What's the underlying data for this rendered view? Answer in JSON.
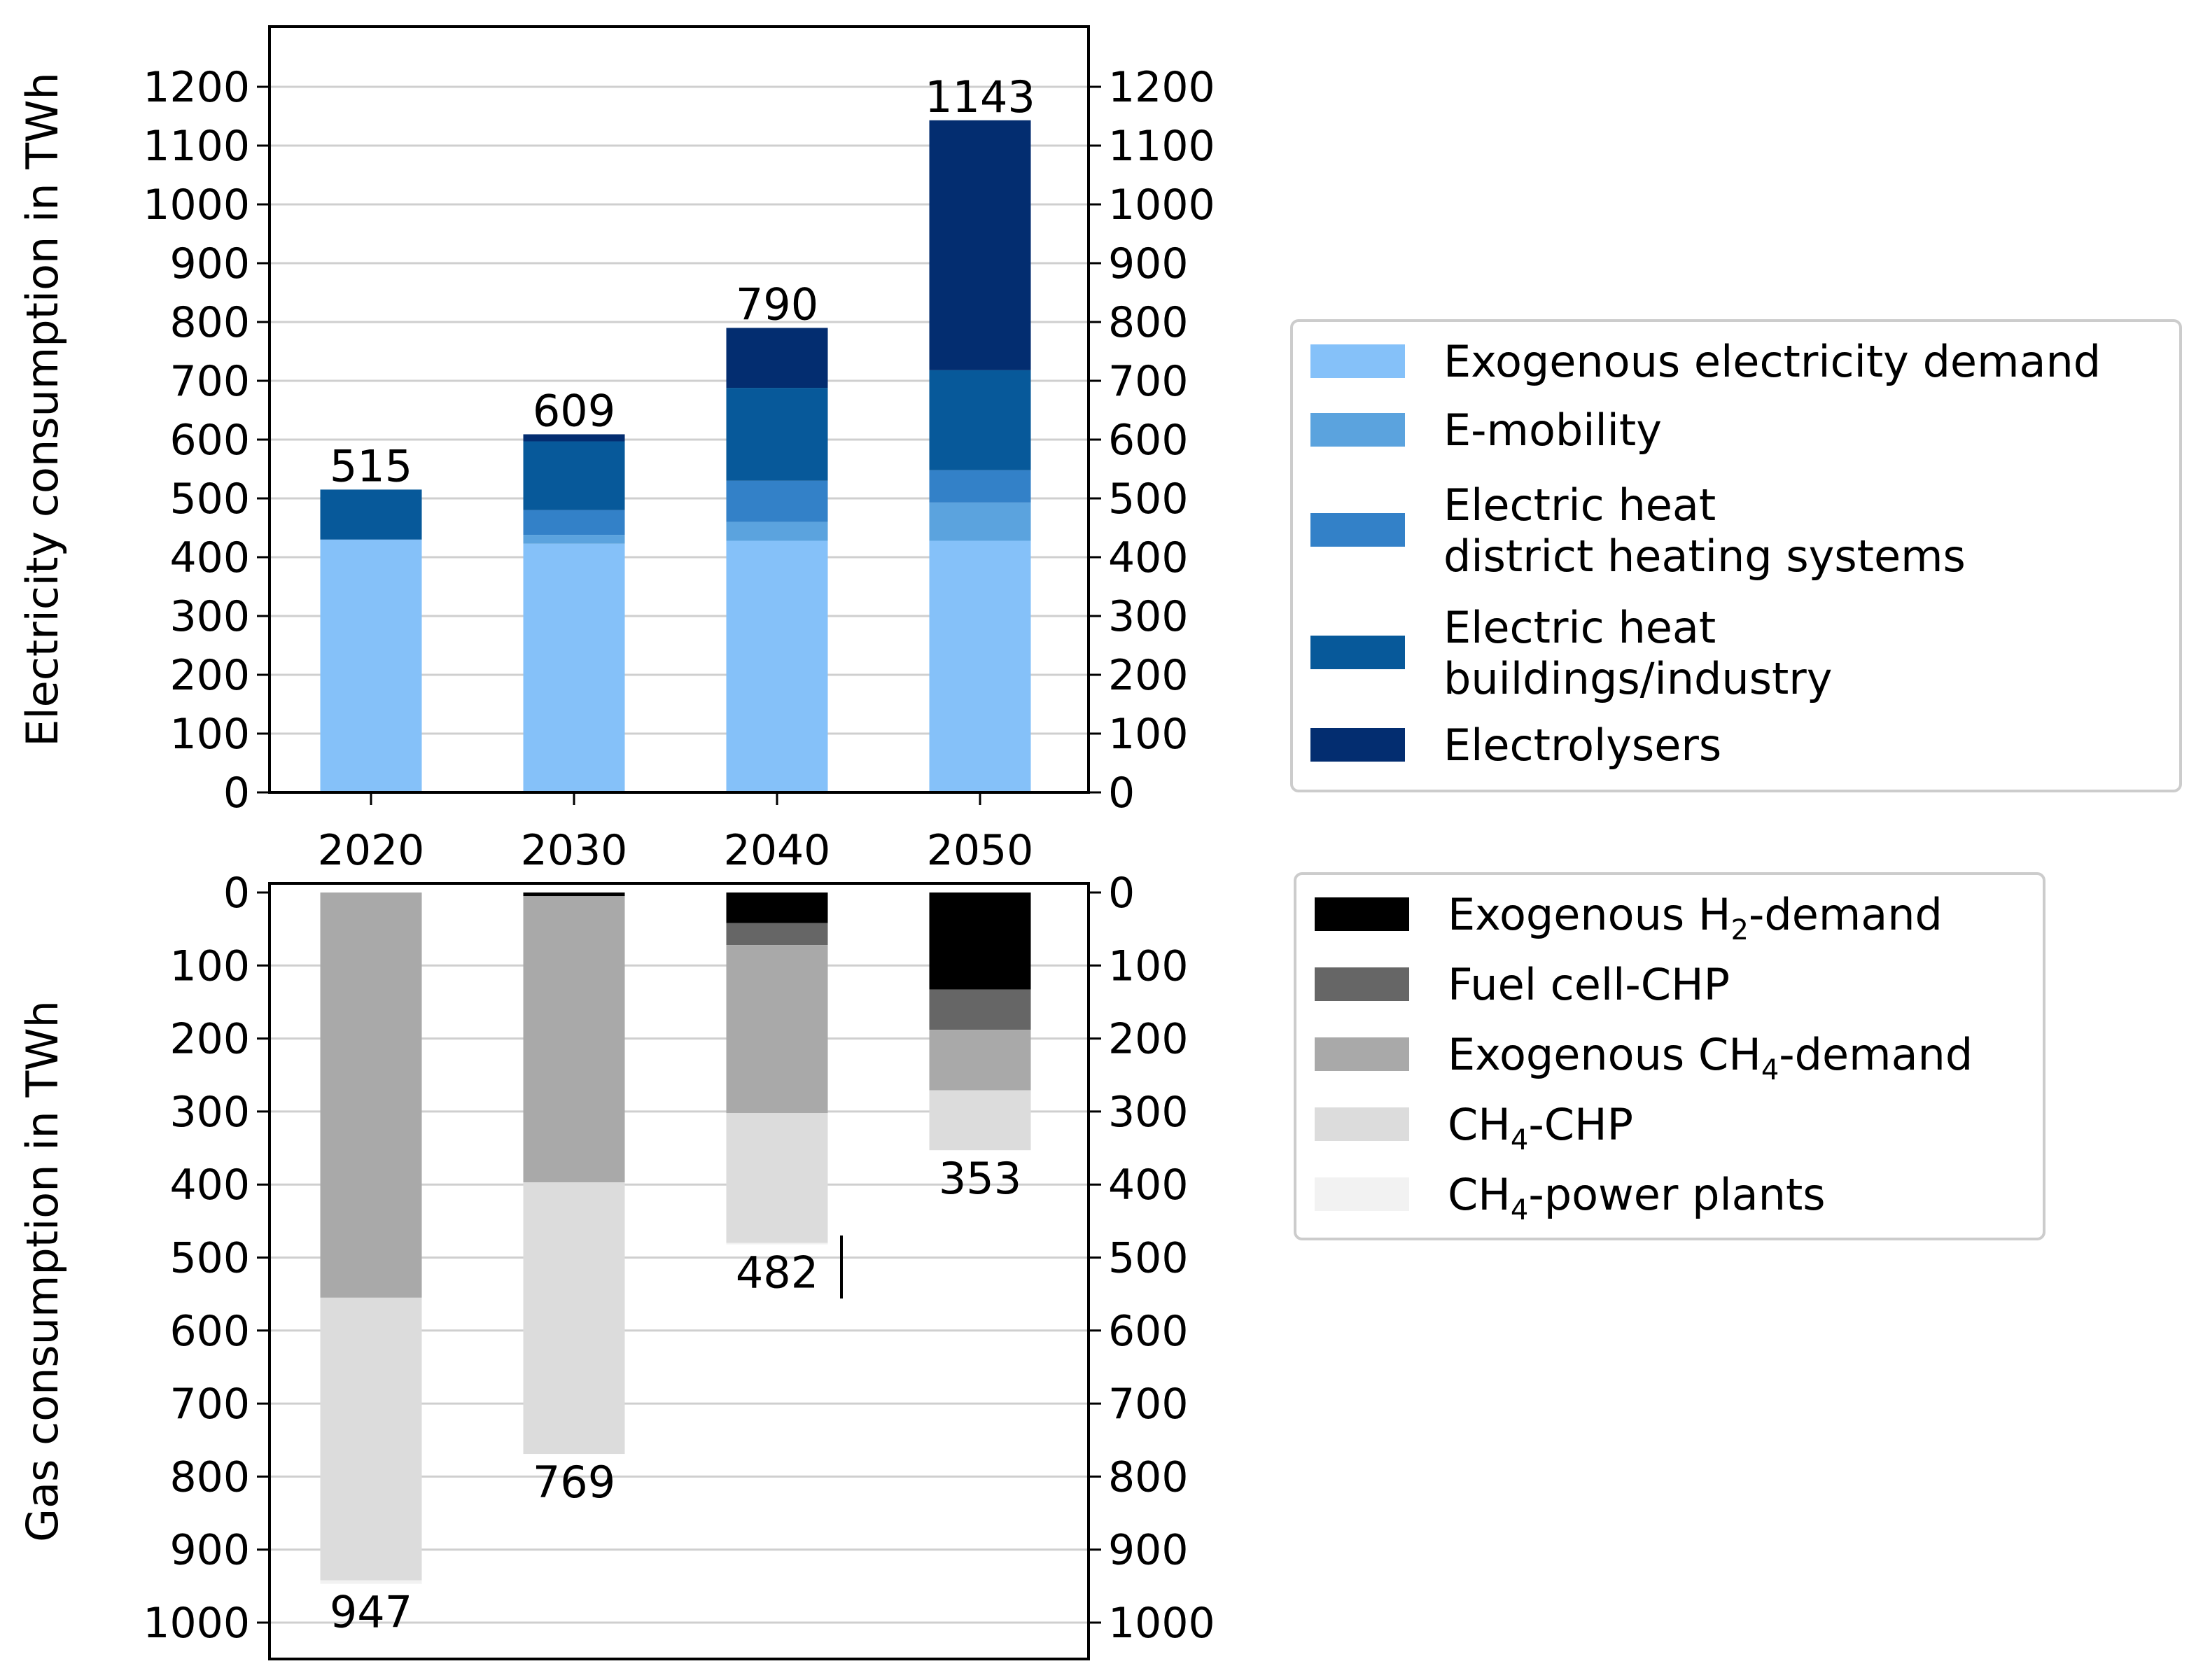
{
  "chart_data": [
    {
      "type": "bar",
      "stacked": true,
      "orientation": "upward",
      "categories": [
        "2020",
        "2030",
        "2040",
        "2050"
      ],
      "ylabel": "Electricity consumption in TWh",
      "ylim": [
        0,
        1300
      ],
      "yticks": [
        0,
        100,
        200,
        300,
        400,
        500,
        600,
        700,
        800,
        900,
        1000,
        1100,
        1200
      ],
      "grid": true,
      "mirror_y_axis": true,
      "legend_position": "right",
      "series": [
        {
          "name": "Exogenous electricity demand",
          "name_lines": [
            "Exogenous electricity demand"
          ],
          "color": "#85C1F9",
          "values": [
            430,
            423,
            428,
            428
          ]
        },
        {
          "name": "E-mobility",
          "name_lines": [
            "E-mobility"
          ],
          "color": "#5BA3DE",
          "values": [
            0,
            15,
            32,
            65
          ]
        },
        {
          "name": "Electric heat district heating systems",
          "name_lines": [
            "Electric heat",
            "district heating systems"
          ],
          "color": "#3381C8",
          "values": [
            0,
            42,
            70,
            55
          ]
        },
        {
          "name": "Electric heat buildings/industry",
          "name_lines": [
            "Electric heat",
            "buildings/industry"
          ],
          "color": "#07599A",
          "values": [
            85,
            117,
            158,
            170
          ]
        },
        {
          "name": "Electrolysers",
          "name_lines": [
            "Electrolysers"
          ],
          "color": "#032D70",
          "values": [
            0,
            12,
            102,
            425
          ]
        }
      ],
      "totals": [
        515,
        609,
        790,
        1143
      ]
    },
    {
      "type": "bar",
      "stacked": true,
      "orientation": "downward",
      "categories": [
        "2020",
        "2030",
        "2040",
        "2050"
      ],
      "ylabel": "Gas consumption in TWh",
      "ylim": [
        0,
        1050
      ],
      "yticks": [
        0,
        100,
        200,
        300,
        400,
        500,
        600,
        700,
        800,
        900,
        1000
      ],
      "grid": true,
      "mirror_y_axis": true,
      "legend_position": "right",
      "series": [
        {
          "name": "Exogenous H2-demand",
          "name_parts": [
            [
              "Exogenous H",
              false
            ],
            [
              "2",
              true
            ],
            [
              "-demand",
              false
            ]
          ],
          "color": "#000000",
          "values": [
            0,
            5,
            42,
            133
          ]
        },
        {
          "name": "Fuel cell-CHP",
          "name_parts": [
            [
              "Fuel cell-CHP",
              false
            ]
          ],
          "color": "#666666",
          "values": [
            0,
            0,
            30,
            55
          ]
        },
        {
          "name": "Exogenous CH4-demand",
          "name_parts": [
            [
              "Exogenous CH",
              false
            ],
            [
              "4",
              true
            ],
            [
              "-demand",
              false
            ]
          ],
          "color": "#A9A9A9",
          "values": [
            555,
            392,
            230,
            83
          ]
        },
        {
          "name": "CH4-CHP",
          "name_parts": [
            [
              "CH",
              false
            ],
            [
              "4",
              true
            ],
            [
              "-CHP",
              false
            ]
          ],
          "color": "#DCDCDC",
          "values": [
            387,
            372,
            178,
            82
          ]
        },
        {
          "name": "CH4-power plants",
          "name_parts": [
            [
              "CH",
              false
            ],
            [
              "4",
              true
            ],
            [
              "-power plants",
              false
            ]
          ],
          "color": "#F2F2F2",
          "values": [
            5,
            0,
            2,
            0
          ]
        }
      ],
      "totals": [
        947,
        769,
        482,
        353
      ]
    }
  ]
}
